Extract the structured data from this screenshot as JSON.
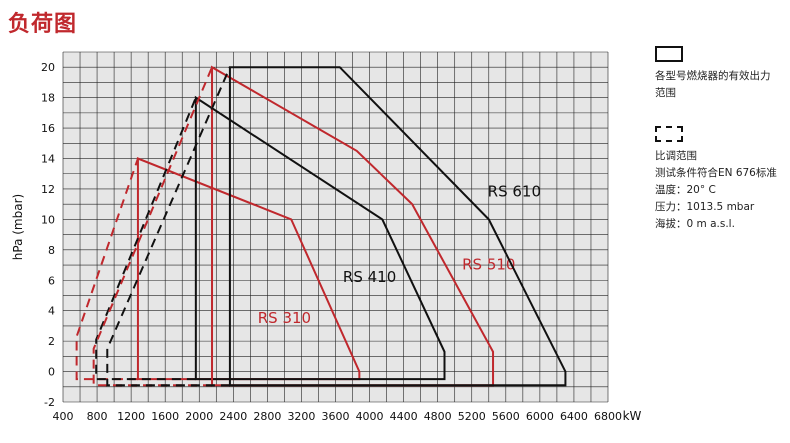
{
  "page_title": "负荷图",
  "legend": {
    "solid_label": "各型号燃烧器的有效出力范围",
    "dashed_label": "比调范围",
    "conditions": [
      "测试条件符合EN 676标准",
      "温度：20° C",
      "压力：1013.5 mbar",
      "海拔：0 m a.s.l."
    ]
  },
  "colors": {
    "black_series": "#111111",
    "red_series": "#c0282d",
    "grid": "#222222"
  },
  "chart_data": {
    "type": "area",
    "xlabel": "kW",
    "ylabel": "hPa (mbar)",
    "xlim": [
      400,
      6800
    ],
    "ylim": [
      -2,
      21
    ],
    "xticks": [
      400,
      800,
      1200,
      1600,
      2000,
      2400,
      2800,
      3200,
      3600,
      4000,
      4400,
      4800,
      5200,
      5600,
      6000,
      6400,
      6800
    ],
    "yticks": [
      -2,
      0,
      2,
      4,
      6,
      8,
      10,
      12,
      14,
      16,
      18,
      20
    ],
    "grid": true,
    "series": [
      {
        "name": "RS 310",
        "color": "red",
        "working_range": [
          [
            1280,
            -0.5
          ],
          [
            1280,
            14
          ],
          [
            3080,
            10
          ],
          [
            3880,
            0
          ],
          [
            3880,
            -0.5
          ]
        ],
        "modulation_range": [
          [
            560,
            -0.5
          ],
          [
            560,
            2.3
          ],
          [
            1280,
            14
          ]
        ],
        "label_at": [
          3000,
          3.2
        ]
      },
      {
        "name": "RS 410",
        "color": "black",
        "working_range": [
          [
            1960,
            -0.5
          ],
          [
            1960,
            18
          ],
          [
            4150,
            10
          ],
          [
            4880,
            1.3
          ],
          [
            4880,
            -0.5
          ]
        ],
        "modulation_range": [
          [
            790,
            -0.5
          ],
          [
            790,
            2.1
          ],
          [
            1960,
            18
          ]
        ],
        "label_at": [
          4000,
          5.9
        ]
      },
      {
        "name": "RS 510",
        "color": "red",
        "working_range": [
          [
            2150,
            -0.9
          ],
          [
            2150,
            20
          ],
          [
            3850,
            14.5
          ],
          [
            4500,
            11
          ],
          [
            5450,
            1.3
          ],
          [
            5450,
            -0.9
          ]
        ],
        "modulation_range": [
          [
            760,
            -0.9
          ],
          [
            760,
            1.5
          ],
          [
            2150,
            20
          ]
        ],
        "label_at": [
          5400,
          6.7
        ]
      },
      {
        "name": "RS 610",
        "color": "black",
        "working_range": [
          [
            2360,
            -0.9
          ],
          [
            2360,
            20
          ],
          [
            3650,
            20
          ],
          [
            5400,
            10
          ],
          [
            6300,
            0
          ],
          [
            6300,
            -0.9
          ]
        ],
        "modulation_range": [
          [
            920,
            -0.9
          ],
          [
            920,
            1.5
          ],
          [
            2360,
            20
          ]
        ],
        "label_at": [
          5700,
          11.5
        ]
      }
    ]
  }
}
